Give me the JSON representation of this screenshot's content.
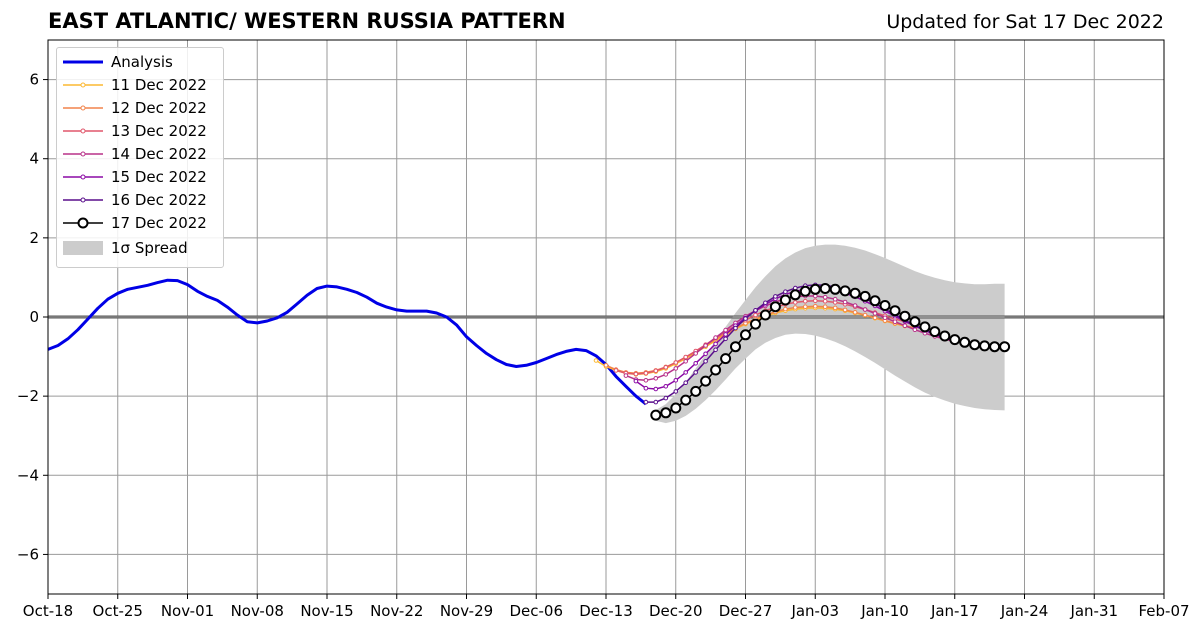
{
  "title": "EAST ATLANTIC/ WESTERN RUSSIA PATTERN",
  "subtitle": "Updated for Sat 17 Dec 2022",
  "chart_data": {
    "type": "line",
    "x_start": "Oct-18",
    "xlim": [
      "2022-10-18",
      "2023-02-07"
    ],
    "ylim": [
      -7,
      7
    ],
    "y_ticks": [
      -6,
      -4,
      -2,
      0,
      2,
      4,
      6
    ],
    "x_ticks": [
      "Oct-18",
      "Oct-25",
      "Nov-01",
      "Nov-08",
      "Nov-15",
      "Nov-22",
      "Nov-29",
      "Dec-06",
      "Dec-13",
      "Dec-20",
      "Dec-27",
      "Jan-03",
      "Jan-10",
      "Jan-17",
      "Jan-24",
      "Jan-31",
      "Feb-07"
    ],
    "grid": true,
    "legend_position": "upper-left",
    "zero_line": 0,
    "analysis": {
      "name": "Analysis",
      "color": "#0000e6",
      "x": [
        "2022-10-18",
        "2022-10-19",
        "2022-10-20",
        "2022-10-21",
        "2022-10-22",
        "2022-10-23",
        "2022-10-24",
        "2022-10-25",
        "2022-10-26",
        "2022-10-27",
        "2022-10-28",
        "2022-10-29",
        "2022-10-30",
        "2022-10-31",
        "2022-11-01",
        "2022-11-02",
        "2022-11-03",
        "2022-11-04",
        "2022-11-05",
        "2022-11-06",
        "2022-11-07",
        "2022-11-08",
        "2022-11-09",
        "2022-11-10",
        "2022-11-11",
        "2022-11-12",
        "2022-11-13",
        "2022-11-14",
        "2022-11-15",
        "2022-11-16",
        "2022-11-17",
        "2022-11-18",
        "2022-11-19",
        "2022-11-20",
        "2022-11-21",
        "2022-11-22",
        "2022-11-23",
        "2022-11-24",
        "2022-11-25",
        "2022-11-26",
        "2022-11-27",
        "2022-11-28",
        "2022-11-29",
        "2022-11-30",
        "2022-12-01",
        "2022-12-02",
        "2022-12-03",
        "2022-12-04",
        "2022-12-05",
        "2022-12-06",
        "2022-12-07",
        "2022-12-08",
        "2022-12-09",
        "2022-12-10",
        "2022-12-11",
        "2022-12-12",
        "2022-12-13",
        "2022-12-14",
        "2022-12-15",
        "2022-12-16",
        "2022-12-17"
      ],
      "y": [
        -0.82,
        -0.72,
        -0.55,
        -0.32,
        -0.05,
        0.22,
        0.45,
        0.6,
        0.7,
        0.75,
        0.8,
        0.87,
        0.93,
        0.92,
        0.82,
        0.65,
        0.52,
        0.42,
        0.25,
        0.05,
        -0.12,
        -0.15,
        -0.1,
        -0.02,
        0.12,
        0.33,
        0.55,
        0.72,
        0.78,
        0.76,
        0.7,
        0.62,
        0.5,
        0.35,
        0.25,
        0.18,
        0.15,
        0.15,
        0.15,
        0.1,
        0.0,
        -0.2,
        -0.5,
        -0.72,
        -0.92,
        -1.08,
        -1.2,
        -1.25,
        -1.22,
        -1.15,
        -1.05,
        -0.95,
        -0.87,
        -0.82,
        -0.85,
        -0.98,
        -1.2,
        -1.5,
        -1.75,
        -2.0,
        -2.2
      ]
    },
    "series": [
      {
        "name": "11 Dec 2022",
        "color": "#fcb832",
        "start": "2022-12-12",
        "y": [
          -1.1,
          -1.25,
          -1.35,
          -1.42,
          -1.45,
          -1.43,
          -1.38,
          -1.3,
          -1.18,
          -1.05,
          -0.9,
          -0.75,
          -0.6,
          -0.45,
          -0.3,
          -0.18,
          -0.08,
          0.02,
          0.1,
          0.16,
          0.2,
          0.22,
          0.23,
          0.22,
          0.2,
          0.16,
          0.1,
          0.04,
          -0.03,
          -0.1,
          -0.17,
          -0.23,
          -0.28
        ]
      },
      {
        "name": "12 Dec 2022",
        "color": "#f2844b",
        "start": "2022-12-13",
        "y": [
          -1.22,
          -1.33,
          -1.4,
          -1.42,
          -1.4,
          -1.35,
          -1.26,
          -1.15,
          -1.02,
          -0.88,
          -0.72,
          -0.56,
          -0.42,
          -0.28,
          -0.16,
          -0.05,
          0.05,
          0.13,
          0.2,
          0.24,
          0.26,
          0.27,
          0.26,
          0.23,
          0.18,
          0.12,
          0.05,
          -0.02,
          -0.09,
          -0.16,
          -0.22,
          -0.27
        ]
      },
      {
        "name": "13 Dec 2022",
        "color": "#e0566b",
        "start": "2022-12-14",
        "y": [
          -1.35,
          -1.42,
          -1.44,
          -1.42,
          -1.36,
          -1.27,
          -1.15,
          -1.01,
          -0.86,
          -0.7,
          -0.53,
          -0.37,
          -0.22,
          -0.08,
          0.05,
          0.16,
          0.25,
          0.32,
          0.37,
          0.4,
          0.41,
          0.4,
          0.37,
          0.32,
          0.26,
          0.19,
          0.11,
          0.03,
          -0.05,
          -0.12,
          -0.18,
          -0.23
        ]
      },
      {
        "name": "14 Dec 2022",
        "color": "#b83289",
        "start": "2022-12-15",
        "y": [
          -1.48,
          -1.58,
          -1.6,
          -1.55,
          -1.45,
          -1.3,
          -1.12,
          -0.92,
          -0.72,
          -0.52,
          -0.33,
          -0.15,
          0.02,
          0.16,
          0.28,
          0.38,
          0.46,
          0.51,
          0.53,
          0.53,
          0.5,
          0.45,
          0.38,
          0.29,
          0.19,
          0.09,
          -0.02,
          -0.12,
          -0.22,
          -0.32,
          -0.41,
          -0.49,
          -0.56,
          -0.62
        ]
      },
      {
        "name": "15 Dec 2022",
        "color": "#8b0aa5",
        "start": "2022-12-16",
        "y": [
          -1.62,
          -1.8,
          -1.82,
          -1.75,
          -1.6,
          -1.4,
          -1.17,
          -0.93,
          -0.68,
          -0.44,
          -0.22,
          -0.02,
          0.16,
          0.32,
          0.46,
          0.57,
          0.65,
          0.7,
          0.72,
          0.71,
          0.67,
          0.6,
          0.51,
          0.4,
          0.28,
          0.15,
          0.02,
          -0.11,
          -0.23,
          -0.34,
          -0.44,
          -0.53,
          -0.6,
          -0.66
        ]
      },
      {
        "name": "16 Dec 2022",
        "color": "#5a0f8c",
        "start": "2022-12-17",
        "y": [
          -2.15,
          -2.15,
          -2.05,
          -1.88,
          -1.66,
          -1.4,
          -1.12,
          -0.83,
          -0.55,
          -0.28,
          -0.04,
          0.17,
          0.36,
          0.52,
          0.64,
          0.73,
          0.79,
          0.81,
          0.8,
          0.76,
          0.69,
          0.59,
          0.47,
          0.34,
          0.2,
          0.06,
          -0.08,
          -0.21,
          -0.32,
          -0.42,
          -0.51,
          -0.58,
          -0.64
        ]
      }
    ],
    "forecast": {
      "name": "17 Dec 2022",
      "start": "2022-12-18",
      "y": [
        -2.48,
        -2.42,
        -2.3,
        -2.1,
        -1.88,
        -1.62,
        -1.34,
        -1.05,
        -0.75,
        -0.45,
        -0.18,
        0.05,
        0.26,
        0.43,
        0.56,
        0.65,
        0.7,
        0.72,
        0.7,
        0.66,
        0.6,
        0.52,
        0.41,
        0.29,
        0.16,
        0.02,
        -0.12,
        -0.25,
        -0.37,
        -0.48,
        -0.57,
        -0.64,
        -0.7,
        -0.73,
        -0.75,
        -0.75
      ]
    },
    "spread": {
      "name": "1σ Spread",
      "color": "#cccccc",
      "start": "2022-12-18",
      "upper": [
        -2.35,
        -2.2,
        -1.95,
        -1.65,
        -1.3,
        -0.95,
        -0.6,
        -0.25,
        0.1,
        0.43,
        0.75,
        1.03,
        1.28,
        1.48,
        1.63,
        1.74,
        1.8,
        1.83,
        1.83,
        1.8,
        1.75,
        1.68,
        1.59,
        1.49,
        1.38,
        1.27,
        1.16,
        1.07,
        0.99,
        0.93,
        0.88,
        0.85,
        0.83,
        0.83,
        0.84,
        0.84
      ],
      "lower": [
        -2.62,
        -2.68,
        -2.62,
        -2.5,
        -2.32,
        -2.1,
        -1.85,
        -1.58,
        -1.3,
        -1.05,
        -0.82,
        -0.65,
        -0.53,
        -0.45,
        -0.42,
        -0.43,
        -0.47,
        -0.54,
        -0.63,
        -0.74,
        -0.87,
        -1.01,
        -1.16,
        -1.32,
        -1.48,
        -1.63,
        -1.78,
        -1.91,
        -2.02,
        -2.11,
        -2.19,
        -2.25,
        -2.3,
        -2.33,
        -2.35,
        -2.36
      ]
    }
  }
}
